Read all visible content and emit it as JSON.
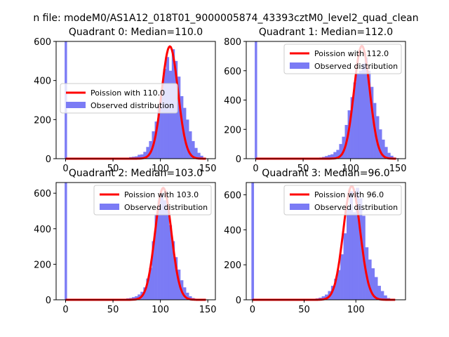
{
  "suptitle": "n file: modeM0/AS1A12_018T01_9000005874_43393cztM0_level2_quad_clean",
  "colors": {
    "hist": "#7b7bf5",
    "fit": "#ff0000",
    "zero_bar": "#7b7bf5"
  },
  "chart_data": [
    {
      "type": "bar",
      "title": "Quadrant 0: Median=110.0",
      "xlabel": "",
      "ylabel": "",
      "xlim": [
        -10,
        158
      ],
      "ylim": [
        0,
        600
      ],
      "xticks": [
        0,
        50,
        100,
        150
      ],
      "yticks": [
        0,
        200,
        400,
        600
      ],
      "legend": {
        "position": "center-left",
        "entries": [
          "Poission with 110.0",
          "Observed distribution"
        ]
      },
      "zero_bin_value": 620,
      "series": [
        {
          "name": "Observed distribution",
          "kind": "histogram",
          "bin_width": 3,
          "x": [
            58,
            61,
            64,
            67,
            70,
            73,
            76,
            79,
            82,
            85,
            88,
            91,
            94,
            97,
            100,
            103,
            106,
            109,
            112,
            115,
            118,
            121,
            124,
            127,
            130,
            133,
            136,
            139,
            142,
            145
          ],
          "values": [
            2,
            3,
            5,
            8,
            10,
            12,
            20,
            22,
            35,
            60,
            90,
            140,
            190,
            270,
            350,
            460,
            520,
            450,
            560,
            500,
            420,
            320,
            260,
            200,
            140,
            90,
            55,
            30,
            15,
            5
          ]
        },
        {
          "name": "Poission with 110.0",
          "kind": "line",
          "mean": 110.0,
          "peak": 575,
          "sigma": 8.5
        }
      ]
    },
    {
      "type": "bar",
      "title": "Quadrant 1: Median=112.0",
      "xlabel": "",
      "ylabel": "",
      "xlim": [
        -10,
        158
      ],
      "ylim": [
        0,
        800
      ],
      "xticks": [
        0,
        50,
        100,
        150
      ],
      "yticks": [
        0,
        200,
        400,
        600,
        800
      ],
      "legend": {
        "position": "top-right",
        "entries": [
          "Poission with 112.0",
          "Observed distribution"
        ]
      },
      "zero_bin_value": 820,
      "series": [
        {
          "name": "Observed distribution",
          "kind": "histogram",
          "bin_width": 3,
          "x": [
            58,
            61,
            64,
            67,
            70,
            73,
            76,
            79,
            82,
            85,
            88,
            91,
            94,
            97,
            100,
            103,
            106,
            109,
            112,
            115,
            118,
            121,
            124,
            127,
            130,
            133,
            136,
            139,
            142,
            145,
            148
          ],
          "values": [
            2,
            4,
            6,
            8,
            12,
            18,
            25,
            30,
            45,
            60,
            100,
            150,
            230,
            330,
            420,
            520,
            580,
            600,
            650,
            690,
            600,
            490,
            380,
            290,
            200,
            130,
            80,
            40,
            20,
            8,
            3
          ]
        },
        {
          "name": "Poission with 112.0",
          "kind": "line",
          "mean": 112.0,
          "peak": 770,
          "sigma": 8.3
        }
      ]
    },
    {
      "type": "bar",
      "title": "Quadrant 2: Median=103.0",
      "xlabel": "",
      "ylabel": "",
      "xlim": [
        -10,
        158
      ],
      "ylim": [
        0,
        660
      ],
      "xticks": [
        0,
        50,
        100,
        150
      ],
      "yticks": [
        0,
        200,
        400,
        600
      ],
      "legend": {
        "position": "top-right",
        "entries": [
          "Poission with 103.0",
          "Observed distribution"
        ]
      },
      "zero_bin_value": 660,
      "series": [
        {
          "name": "Observed distribution",
          "kind": "histogram",
          "bin_width": 3,
          "x": [
            55,
            58,
            61,
            64,
            67,
            70,
            73,
            76,
            79,
            82,
            85,
            88,
            91,
            94,
            97,
            100,
            103,
            106,
            109,
            112,
            115,
            118,
            121,
            124,
            127,
            130,
            133,
            136,
            139
          ],
          "values": [
            2,
            3,
            5,
            8,
            10,
            15,
            20,
            30,
            45,
            70,
            120,
            180,
            330,
            480,
            560,
            600,
            560,
            510,
            420,
            330,
            240,
            170,
            110,
            70,
            40,
            20,
            10,
            5,
            2
          ]
        },
        {
          "name": "Poission with 103.0",
          "kind": "line",
          "mean": 103.0,
          "peak": 630,
          "sigma": 8.6
        }
      ]
    },
    {
      "type": "bar",
      "title": "Quadrant 3: Median=96.0",
      "xlabel": "",
      "ylabel": "",
      "xlim": [
        -6,
        148
      ],
      "ylim": [
        0,
        670
      ],
      "xticks": [
        0,
        50,
        100
      ],
      "yticks": [
        0,
        200,
        400,
        600
      ],
      "legend": {
        "position": "top-right",
        "entries": [
          "Poission with 96.0",
          "Observed distribution"
        ]
      },
      "zero_bin_value": 670,
      "series": [
        {
          "name": "Observed distribution",
          "kind": "histogram",
          "bin_width": 3,
          "x": [
            55,
            58,
            61,
            64,
            67,
            70,
            73,
            76,
            79,
            82,
            85,
            88,
            91,
            94,
            97,
            100,
            103,
            106,
            109,
            112,
            115,
            118,
            121,
            124,
            127,
            130,
            133
          ],
          "values": [
            3,
            5,
            8,
            12,
            20,
            30,
            50,
            80,
            120,
            170,
            260,
            380,
            520,
            620,
            500,
            640,
            580,
            480,
            300,
            230,
            180,
            130,
            80,
            50,
            25,
            10,
            5
          ]
        },
        {
          "name": "Poission with 96.0",
          "kind": "line",
          "mean": 96.0,
          "peak": 650,
          "sigma": 8.2
        }
      ]
    }
  ]
}
